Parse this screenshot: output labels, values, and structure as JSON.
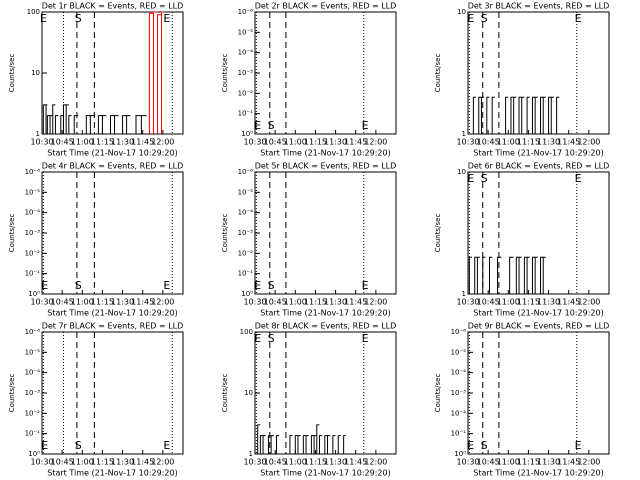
{
  "chart_data": [
    {
      "type": "step",
      "title": "Det 1r BLACK = Events, RED = LLD",
      "xlabel": "Start Time (21-Nov-17 10:29:20)",
      "ylabel": "Counts/sec",
      "log": true,
      "ylim": [
        1,
        100
      ],
      "yticks": [
        1,
        10,
        100
      ],
      "xlim": [
        "10:30",
        "12:15"
      ],
      "xticks": [
        "10:30",
        "10:45",
        "11:00",
        "11:15",
        "11:30",
        "11:45",
        "12:00"
      ],
      "markers": [
        {
          "x": "10:46",
          "style": "dotted"
        },
        {
          "x": "10:56",
          "style": "dashed"
        },
        {
          "x": "11:09",
          "style": "dashed"
        },
        {
          "x": "12:07",
          "style": "dotted"
        }
      ],
      "annotation_position": "top",
      "annotations": [
        {
          "text": "E",
          "x": "10:31"
        },
        {
          "text": "S",
          "x": "10:57"
        },
        {
          "text": "E",
          "x": "12:03"
        }
      ],
      "series": [
        {
          "color": "#000000",
          "x": [
            "10:31",
            "10:33",
            "10:34",
            "10:36",
            "10:38",
            "10:40",
            "10:42",
            "10:44",
            "10:46",
            "10:48",
            "10:50",
            "10:52",
            "10:54",
            "10:57",
            "11:00",
            "11:03",
            "11:06",
            "11:09",
            "11:12",
            "11:15",
            "11:18",
            "11:21",
            "11:24",
            "11:27",
            "11:30",
            "11:33",
            "11:36",
            "11:40",
            "11:44",
            "11:48"
          ],
          "values": [
            3,
            3,
            2,
            2,
            3,
            2,
            1,
            2,
            3,
            3,
            2,
            1,
            2,
            1,
            1,
            2,
            2,
            1,
            2,
            2,
            1,
            2,
            2,
            1,
            2,
            2,
            1,
            2,
            2,
            1
          ]
        },
        {
          "color": "#ff0000",
          "x": [
            "11:50",
            "11:53",
            "11:56",
            "11:59"
          ],
          "values": [
            95,
            100,
            90,
            100
          ]
        }
      ]
    },
    {
      "type": "step",
      "title": "Det 2r BLACK = Events, RED = LLD",
      "xlabel": "Start Time (21-Nov-17 10:29:20)",
      "ylabel": "Counts/sec",
      "log": false,
      "ylim": [
        0,
        6
      ],
      "yticks": [
        {
          "value": 0,
          "label": "10⁰"
        },
        {
          "value": 1,
          "label": "10⁻¹"
        },
        {
          "value": 2,
          "label": "10⁻²"
        },
        {
          "value": 3,
          "label": "10⁻³"
        },
        {
          "value": 4,
          "label": "10⁻⁴"
        },
        {
          "value": 5,
          "label": "10⁻⁵"
        },
        {
          "value": 6,
          "label": "10⁻⁶"
        }
      ],
      "xlim": [
        "10:30",
        "12:15"
      ],
      "xticks": [
        "10:30",
        "10:45",
        "11:00",
        "11:15",
        "11:30",
        "11:45",
        "12:00"
      ],
      "markers": [
        {
          "x": "10:31",
          "style": "dotted"
        },
        {
          "x": "10:41",
          "style": "dashed"
        },
        {
          "x": "10:53",
          "style": "dashed"
        },
        {
          "x": "11:51",
          "style": "dotted"
        }
      ],
      "annotation_position": "bottom",
      "annotations": [
        {
          "text": "E",
          "x": "10:32"
        },
        {
          "text": "S",
          "x": "10:42"
        },
        {
          "text": "E",
          "x": "11:52"
        }
      ],
      "series": []
    },
    {
      "type": "step",
      "title": "Det 3r BLACK = Events, RED = LLD",
      "xlabel": "Start Time (21-Nov-17 10:29:20)",
      "ylabel": "Counts/sec",
      "log": true,
      "ylim": [
        1,
        10
      ],
      "yticks": [
        1,
        10
      ],
      "xlim": [
        "10:30",
        "12:15"
      ],
      "xticks": [
        "10:30",
        "10:45",
        "11:00",
        "11:15",
        "11:30",
        "11:45",
        "12:00"
      ],
      "markers": [
        {
          "x": "10:31",
          "style": "dotted"
        },
        {
          "x": "10:41",
          "style": "dashed"
        },
        {
          "x": "10:53",
          "style": "dashed"
        },
        {
          "x": "11:51",
          "style": "dotted"
        }
      ],
      "annotation_position": "top",
      "annotations": [
        {
          "text": "E",
          "x": "10:32"
        },
        {
          "text": "S",
          "x": "10:42"
        },
        {
          "text": "E",
          "x": "11:52"
        }
      ],
      "series": [
        {
          "color": "#000000",
          "x": [
            "10:34",
            "10:36",
            "10:38",
            "10:40",
            "10:42",
            "10:44",
            "10:46",
            "10:48",
            "10:50",
            "10:56",
            "10:58",
            "11:00",
            "11:02",
            "11:04",
            "11:06",
            "11:08",
            "11:10",
            "11:12",
            "11:14",
            "11:16",
            "11:18",
            "11:20",
            "11:22",
            "11:24",
            "11:26",
            "11:28",
            "11:30",
            "11:32",
            "11:34",
            "11:36",
            "11:38"
          ],
          "values": [
            2,
            1,
            2,
            2,
            1,
            2,
            1,
            2,
            1,
            1,
            2,
            1,
            2,
            2,
            1,
            2,
            2,
            1,
            2,
            1,
            2,
            2,
            1,
            2,
            2,
            1,
            2,
            2,
            1,
            2,
            1
          ]
        }
      ]
    },
    {
      "type": "step",
      "title": "Det 4r BLACK = Events, RED = LLD",
      "xlabel": "Start Time (21-Nov-17 10:29:20)",
      "ylabel": "Counts/sec",
      "log": false,
      "ylim": [
        0,
        6
      ],
      "yticks": [
        {
          "value": 0,
          "label": "10⁰"
        },
        {
          "value": 1,
          "label": "10⁻¹"
        },
        {
          "value": 2,
          "label": "10⁻²"
        },
        {
          "value": 3,
          "label": "10⁻³"
        },
        {
          "value": 4,
          "label": "10⁻⁴"
        },
        {
          "value": 5,
          "label": "10⁻⁵"
        },
        {
          "value": 6,
          "label": "10⁻⁶"
        }
      ],
      "xlim": [
        "10:30",
        "12:15"
      ],
      "xticks": [
        "10:30",
        "10:45",
        "11:00",
        "11:15",
        "11:30",
        "11:45",
        "12:00"
      ],
      "markers": [
        {
          "x": "10:31",
          "style": "dotted"
        },
        {
          "x": "10:56",
          "style": "dashed"
        },
        {
          "x": "11:09",
          "style": "dashed"
        },
        {
          "x": "12:07",
          "style": "dotted"
        }
      ],
      "annotation_position": "bottom",
      "annotations": [
        {
          "text": "E",
          "x": "10:32"
        },
        {
          "text": "S",
          "x": "10:57"
        },
        {
          "text": "E",
          "x": "12:03"
        }
      ],
      "series": []
    },
    {
      "type": "step",
      "title": "Det 5r BLACK = Events, RED = LLD",
      "xlabel": "Start Time (21-Nov-17 10:29:20)",
      "ylabel": "Counts/sec",
      "log": false,
      "ylim": [
        0,
        6
      ],
      "yticks": [
        {
          "value": 0,
          "label": "10⁰"
        },
        {
          "value": 1,
          "label": "10⁻¹"
        },
        {
          "value": 2,
          "label": "10⁻²"
        },
        {
          "value": 3,
          "label": "10⁻³"
        },
        {
          "value": 4,
          "label": "10⁻⁴"
        },
        {
          "value": 5,
          "label": "10⁻⁵"
        },
        {
          "value": 6,
          "label": "10⁻⁶"
        }
      ],
      "xlim": [
        "10:30",
        "12:15"
      ],
      "xticks": [
        "10:30",
        "10:45",
        "11:00",
        "11:15",
        "11:30",
        "11:45",
        "12:00"
      ],
      "markers": [
        {
          "x": "10:31",
          "style": "dotted"
        },
        {
          "x": "10:41",
          "style": "dashed"
        },
        {
          "x": "10:53",
          "style": "dashed"
        },
        {
          "x": "11:51",
          "style": "dotted"
        }
      ],
      "annotation_position": "bottom",
      "annotations": [
        {
          "text": "E",
          "x": "10:32"
        },
        {
          "text": "S",
          "x": "10:42"
        },
        {
          "text": "E",
          "x": "11:52"
        }
      ],
      "series": []
    },
    {
      "type": "step",
      "title": "Det 6r BLACK = Events, RED = LLD",
      "xlabel": "Start Time (21-Nov-17 10:29:20)",
      "ylabel": "Counts/sec",
      "log": true,
      "ylim": [
        1,
        10
      ],
      "yticks": [
        1,
        10
      ],
      "xlim": [
        "10:30",
        "12:15"
      ],
      "xticks": [
        "10:30",
        "10:45",
        "11:00",
        "11:15",
        "11:30",
        "11:45",
        "12:00"
      ],
      "markers": [
        {
          "x": "10:31",
          "style": "dotted"
        },
        {
          "x": "10:41",
          "style": "dashed"
        },
        {
          "x": "10:53",
          "style": "dashed"
        },
        {
          "x": "11:51",
          "style": "dotted"
        }
      ],
      "annotation_position": "top",
      "annotations": [
        {
          "text": "E",
          "x": "10:32"
        },
        {
          "text": "S",
          "x": "10:42"
        },
        {
          "text": "E",
          "x": "11:52"
        }
      ],
      "series": [
        {
          "color": "#000000",
          "x": [
            "10:31",
            "10:33",
            "10:35",
            "10:37",
            "10:39",
            "10:41",
            "10:43",
            "10:46",
            "10:48",
            "10:50",
            "10:52",
            "10:55",
            "10:58",
            "11:01",
            "11:04",
            "11:06",
            "11:08",
            "11:10",
            "11:12",
            "11:14",
            "11:16",
            "11:18",
            "11:20",
            "11:22",
            "11:24",
            "11:26",
            "11:28"
          ],
          "values": [
            2,
            1,
            2,
            2,
            1,
            2,
            1,
            2,
            1,
            1,
            2,
            1,
            1,
            2,
            1,
            2,
            2,
            1,
            2,
            2,
            1,
            2,
            2,
            1,
            2,
            2,
            1
          ]
        }
      ]
    },
    {
      "type": "step",
      "title": "Det 7r BLACK = Events, RED = LLD",
      "xlabel": "Start Time (21-Nov-17 10:29:20)",
      "ylabel": "Counts/sec",
      "log": false,
      "ylim": [
        0,
        6
      ],
      "yticks": [
        {
          "value": 0,
          "label": "10⁰"
        },
        {
          "value": 1,
          "label": "10⁻¹"
        },
        {
          "value": 2,
          "label": "10⁻²"
        },
        {
          "value": 3,
          "label": "10⁻³"
        },
        {
          "value": 4,
          "label": "10⁻⁴"
        },
        {
          "value": 5,
          "label": "10⁻⁵"
        },
        {
          "value": 6,
          "label": "10⁻⁶"
        }
      ],
      "xlim": [
        "10:30",
        "12:15"
      ],
      "xticks": [
        "10:30",
        "10:45",
        "11:00",
        "11:15",
        "11:30",
        "11:45",
        "12:00"
      ],
      "markers": [
        {
          "x": "10:31",
          "style": "dotted"
        },
        {
          "x": "10:46",
          "style": "dotted"
        },
        {
          "x": "10:56",
          "style": "dashed"
        },
        {
          "x": "11:09",
          "style": "dashed"
        },
        {
          "x": "12:07",
          "style": "dotted"
        }
      ],
      "annotation_position": "bottom",
      "annotations": [
        {
          "text": "E",
          "x": "10:32"
        },
        {
          "text": "S",
          "x": "10:57"
        },
        {
          "text": "E",
          "x": "12:03"
        }
      ],
      "series": []
    },
    {
      "type": "step",
      "title": "Det 8r BLACK = Events, RED = LLD",
      "xlabel": "Start Time (21-Nov-17 10:29:20)",
      "ylabel": "Counts/sec",
      "log": true,
      "ylim": [
        1,
        100
      ],
      "yticks": [
        1,
        10,
        100
      ],
      "xlim": [
        "10:30",
        "12:15"
      ],
      "xticks": [
        "10:30",
        "10:45",
        "11:00",
        "11:15",
        "11:30",
        "11:45",
        "12:00"
      ],
      "markers": [
        {
          "x": "10:31",
          "style": "dotted"
        },
        {
          "x": "10:41",
          "style": "dashed"
        },
        {
          "x": "10:53",
          "style": "dashed"
        },
        {
          "x": "11:51",
          "style": "dotted"
        }
      ],
      "annotation_position": "top",
      "annotations": [
        {
          "text": "E",
          "x": "10:32"
        },
        {
          "text": "S",
          "x": "10:42"
        },
        {
          "text": "E",
          "x": "11:52"
        }
      ],
      "series": [
        {
          "color": "#000000",
          "x": [
            "10:32",
            "10:34",
            "10:36",
            "10:38",
            "10:40",
            "10:42",
            "10:44",
            "10:46",
            "10:48",
            "10:50",
            "10:56",
            "10:58",
            "11:00",
            "11:02",
            "11:04",
            "11:06",
            "11:08",
            "11:10",
            "11:12",
            "11:14",
            "11:16",
            "11:18",
            "11:20",
            "11:22",
            "11:24",
            "11:26",
            "11:28",
            "11:30",
            "11:32",
            "11:34",
            "11:36"
          ],
          "values": [
            3,
            2,
            2,
            1,
            2,
            2,
            1,
            2,
            1,
            1,
            2,
            1,
            2,
            2,
            1,
            2,
            2,
            1,
            2,
            2,
            3,
            2,
            1,
            2,
            2,
            1,
            2,
            1,
            2,
            1,
            2
          ]
        }
      ]
    },
    {
      "type": "step",
      "title": "Det 9r BLACK = Events, RED = LLD",
      "xlabel": "Start Time (21-Nov-17 10:29:20)",
      "ylabel": "Counts/sec",
      "log": false,
      "ylim": [
        0,
        6
      ],
      "yticks": [
        {
          "value": 0,
          "label": "10⁰"
        },
        {
          "value": 1,
          "label": "10⁻¹"
        },
        {
          "value": 2,
          "label": "10⁻²"
        },
        {
          "value": 3,
          "label": "10⁻³"
        },
        {
          "value": 4,
          "label": "10⁻⁴"
        },
        {
          "value": 5,
          "label": "10⁻⁵"
        },
        {
          "value": 6,
          "label": "10⁻⁶"
        }
      ],
      "xlim": [
        "10:30",
        "12:15"
      ],
      "xticks": [
        "10:30",
        "10:45",
        "11:00",
        "11:15",
        "11:30",
        "11:45",
        "12:00"
      ],
      "markers": [
        {
          "x": "10:31",
          "style": "dotted"
        },
        {
          "x": "10:41",
          "style": "dashed"
        },
        {
          "x": "10:53",
          "style": "dashed"
        },
        {
          "x": "11:51",
          "style": "dotted"
        }
      ],
      "annotation_position": "bottom",
      "annotations": [
        {
          "text": "E",
          "x": "10:32"
        },
        {
          "text": "S",
          "x": "10:42"
        },
        {
          "text": "E",
          "x": "11:52"
        }
      ],
      "series": []
    }
  ]
}
